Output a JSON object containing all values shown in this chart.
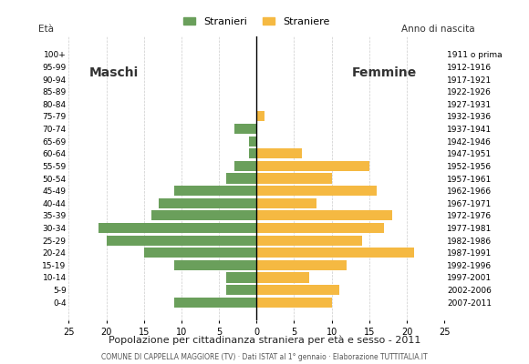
{
  "age_groups": [
    "0-4",
    "5-9",
    "10-14",
    "15-19",
    "20-24",
    "25-29",
    "30-34",
    "35-39",
    "40-44",
    "45-49",
    "50-54",
    "55-59",
    "60-64",
    "65-69",
    "70-74",
    "75-79",
    "80-84",
    "85-89",
    "90-94",
    "95-99",
    "100+"
  ],
  "birth_years": [
    "2007-2011",
    "2002-2006",
    "1997-2001",
    "1992-1996",
    "1987-1991",
    "1982-1986",
    "1977-1981",
    "1972-1976",
    "1967-1971",
    "1962-1966",
    "1957-1961",
    "1952-1956",
    "1947-1951",
    "1942-1946",
    "1937-1941",
    "1932-1936",
    "1927-1931",
    "1922-1926",
    "1917-1921",
    "1912-1916",
    "1911 o prima"
  ],
  "males": [
    11,
    4,
    4,
    11,
    15,
    20,
    21,
    14,
    13,
    11,
    4,
    3,
    1,
    1,
    3,
    0,
    0,
    0,
    0,
    0,
    0
  ],
  "females": [
    10,
    11,
    7,
    12,
    21,
    14,
    17,
    18,
    8,
    16,
    10,
    15,
    6,
    0,
    0,
    1,
    0,
    0,
    0,
    0,
    0
  ],
  "male_color": "#6a9f5b",
  "female_color": "#f5b942",
  "bar_height": 0.82,
  "xlim": 25,
  "title": "Popolazione per cittadinanza straniera per età e sesso - 2011",
  "subtitle": "COMUNE DI CAPPELLA MAGGIORE (TV) · Dati ISTAT al 1° gennaio · Elaborazione TUTTITALIA.IT",
  "ylabel_left": "Età",
  "ylabel_right": "Anno di nascita",
  "label_males": "Stranieri",
  "label_females": "Straniere",
  "maschi_label": "Maschi",
  "femmine_label": "Femmine",
  "xticks": [
    -25,
    -20,
    -15,
    -10,
    -5,
    0,
    5,
    10,
    15,
    20,
    25
  ],
  "xtick_labels": [
    "25",
    "20",
    "15",
    "10",
    "5",
    "0",
    "5",
    "10",
    "15",
    "20",
    "25"
  ],
  "bg_color": "#ffffff",
  "grid_color": "#cccccc",
  "axis_line_color": "#000000"
}
